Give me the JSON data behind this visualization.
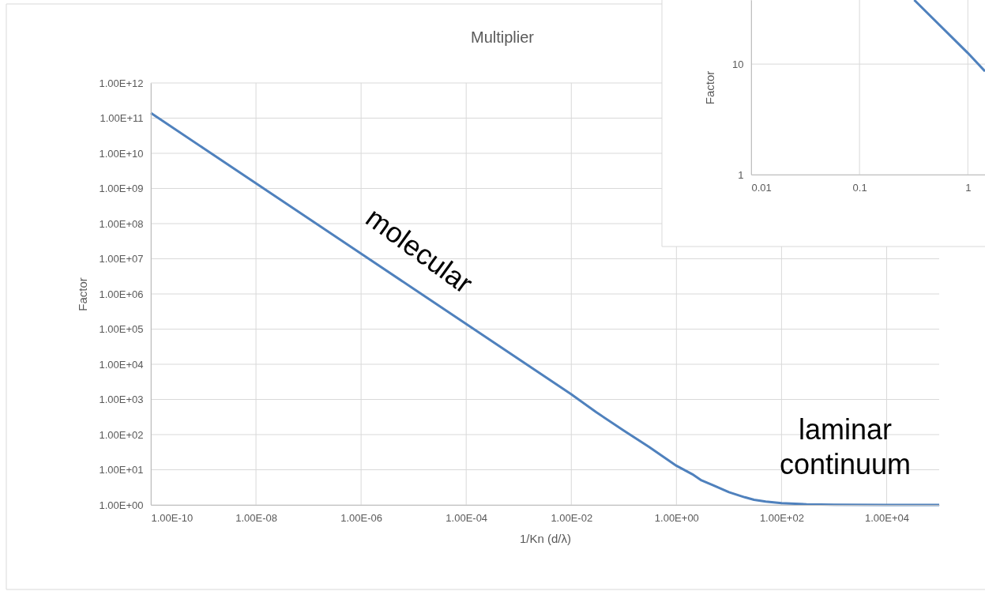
{
  "chart_data": [
    {
      "type": "line",
      "title": "Multiplier",
      "xlabel": "1/Kn (d/λ)",
      "ylabel": "Factor",
      "log": "xy",
      "grid": true,
      "marker": "none",
      "line_style": "solid",
      "x": [
        1e-10,
        1e-09,
        1e-08,
        1e-07,
        1e-06,
        1e-05,
        0.0001,
        0.001,
        0.01,
        0.03,
        0.1,
        0.3,
        1,
        2,
        3,
        5,
        10,
        20,
        30,
        50,
        100,
        300,
        1000,
        10000,
        100000
      ],
      "series": [
        {
          "color": "#4f81bd",
          "values": [
            140000000000.0,
            14000000000.0,
            1400000000.0,
            140000000.0,
            14000000.0,
            1400000.0,
            140000.0,
            14000.0,
            1400,
            430,
            130,
            45,
            13,
            7.5,
            5,
            3.6,
            2.3,
            1.65,
            1.4,
            1.25,
            1.12,
            1.04,
            1.01,
            1,
            1
          ]
        }
      ],
      "xlim": [
        1e-10,
        100000
      ],
      "ylim": [
        1,
        1000000000000.0
      ],
      "xticks": [
        {
          "value": 1e-10,
          "label": "1.00E-10"
        },
        {
          "value": 1e-08,
          "label": "1.00E-08"
        },
        {
          "value": 1e-06,
          "label": "1.00E-06"
        },
        {
          "value": 0.0001,
          "label": "1.00E-04"
        },
        {
          "value": 0.01,
          "label": "1.00E-02"
        },
        {
          "value": 1,
          "label": "1.00E+00"
        },
        {
          "value": 100,
          "label": "1.00E+02"
        },
        {
          "value": 10000,
          "label": "1.00E+04"
        }
      ],
      "yticks": [
        {
          "value": 1,
          "label": "1.00E+00"
        },
        {
          "value": 10,
          "label": "1.00E+01"
        },
        {
          "value": 100,
          "label": "1.00E+02"
        },
        {
          "value": 1000,
          "label": "1.00E+03"
        },
        {
          "value": 10000,
          "label": "1.00E+04"
        },
        {
          "value": 100000,
          "label": "1.00E+05"
        },
        {
          "value": 1000000,
          "label": "1.00E+06"
        },
        {
          "value": 10000000.0,
          "label": "1.00E+07"
        },
        {
          "value": 100000000.0,
          "label": "1.00E+08"
        },
        {
          "value": 1000000000.0,
          "label": "1.00E+09"
        },
        {
          "value": 10000000000.0,
          "label": "1.00E+10"
        },
        {
          "value": 100000000000.0,
          "label": "1.00E+11"
        },
        {
          "value": 1000000000000.0,
          "label": "1.00E+12"
        }
      ],
      "annotations": [
        "molecular",
        "laminar\ncontinuum"
      ]
    },
    {
      "type": "line",
      "ylabel": "Factor",
      "log": "xy",
      "grid": true,
      "marker": "none",
      "line_style": "solid",
      "x": [
        0.32,
        1,
        1.44
      ],
      "series": [
        {
          "color": "#4f81bd",
          "values": [
            38,
            12.6,
            8.6
          ]
        }
      ],
      "xlim": [
        0.01,
        1.44
      ],
      "ylim": [
        1,
        38
      ],
      "xticks": [
        0.01,
        0.1,
        1
      ],
      "yticks": [
        1,
        10
      ]
    }
  ]
}
